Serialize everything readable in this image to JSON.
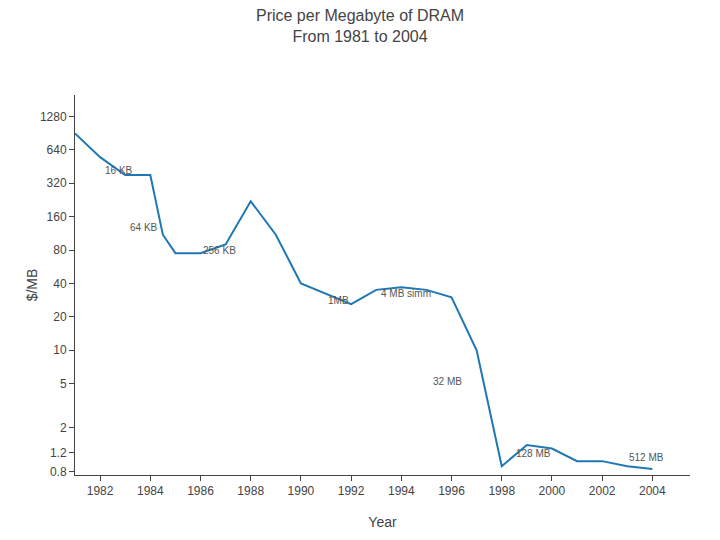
{
  "chart_data": {
    "type": "line",
    "title": "Price per Megabyte of DRAM\nFrom 1981 to 2004",
    "xlabel": "Year",
    "ylabel": "$/MB",
    "x": [
      1981,
      1982,
      1983,
      1984,
      1984.5,
      1985,
      1986,
      1987,
      1988,
      1989,
      1990,
      1991,
      1992,
      1993,
      1994,
      1995,
      1996,
      1997,
      1998,
      1999,
      2000,
      2001,
      2002,
      2003,
      2004
    ],
    "values": [
      900,
      550,
      380,
      380,
      110,
      75,
      75,
      90,
      220,
      110,
      40,
      32,
      26,
      35,
      37,
      35,
      30,
      10,
      0.9,
      1.4,
      1.3,
      1.0,
      1.0,
      0.9,
      0.85
    ],
    "log": "y",
    "xlim": [
      1981,
      2005.5
    ],
    "ylim": [
      0.75,
      2000
    ],
    "xticks": [
      1982,
      1984,
      1986,
      1988,
      1990,
      1992,
      1994,
      1996,
      1998,
      2000,
      2002,
      2004
    ],
    "yticks": [
      0.8,
      1.2,
      2,
      5,
      10,
      20,
      40,
      80,
      160,
      320,
      640,
      1280
    ],
    "grid": false,
    "annotations": [
      {
        "text": "16 KB",
        "x": 1982.1,
        "y": 360
      },
      {
        "text": "64 KB",
        "x": 1983.1,
        "y": 110
      },
      {
        "text": "256 KB",
        "x": 1986.0,
        "y": 68
      },
      {
        "text": "1MB",
        "x": 1991.0,
        "y": 24
      },
      {
        "text": "4 MB simm",
        "x": 1993.1,
        "y": 28
      },
      {
        "text": "32 MB",
        "x": 1995.2,
        "y": 4.5
      },
      {
        "text": "128 MB",
        "x": 1998.5,
        "y": 1.0
      },
      {
        "text": "512 MB",
        "x": 2003.0,
        "y": 0.92
      }
    ]
  }
}
